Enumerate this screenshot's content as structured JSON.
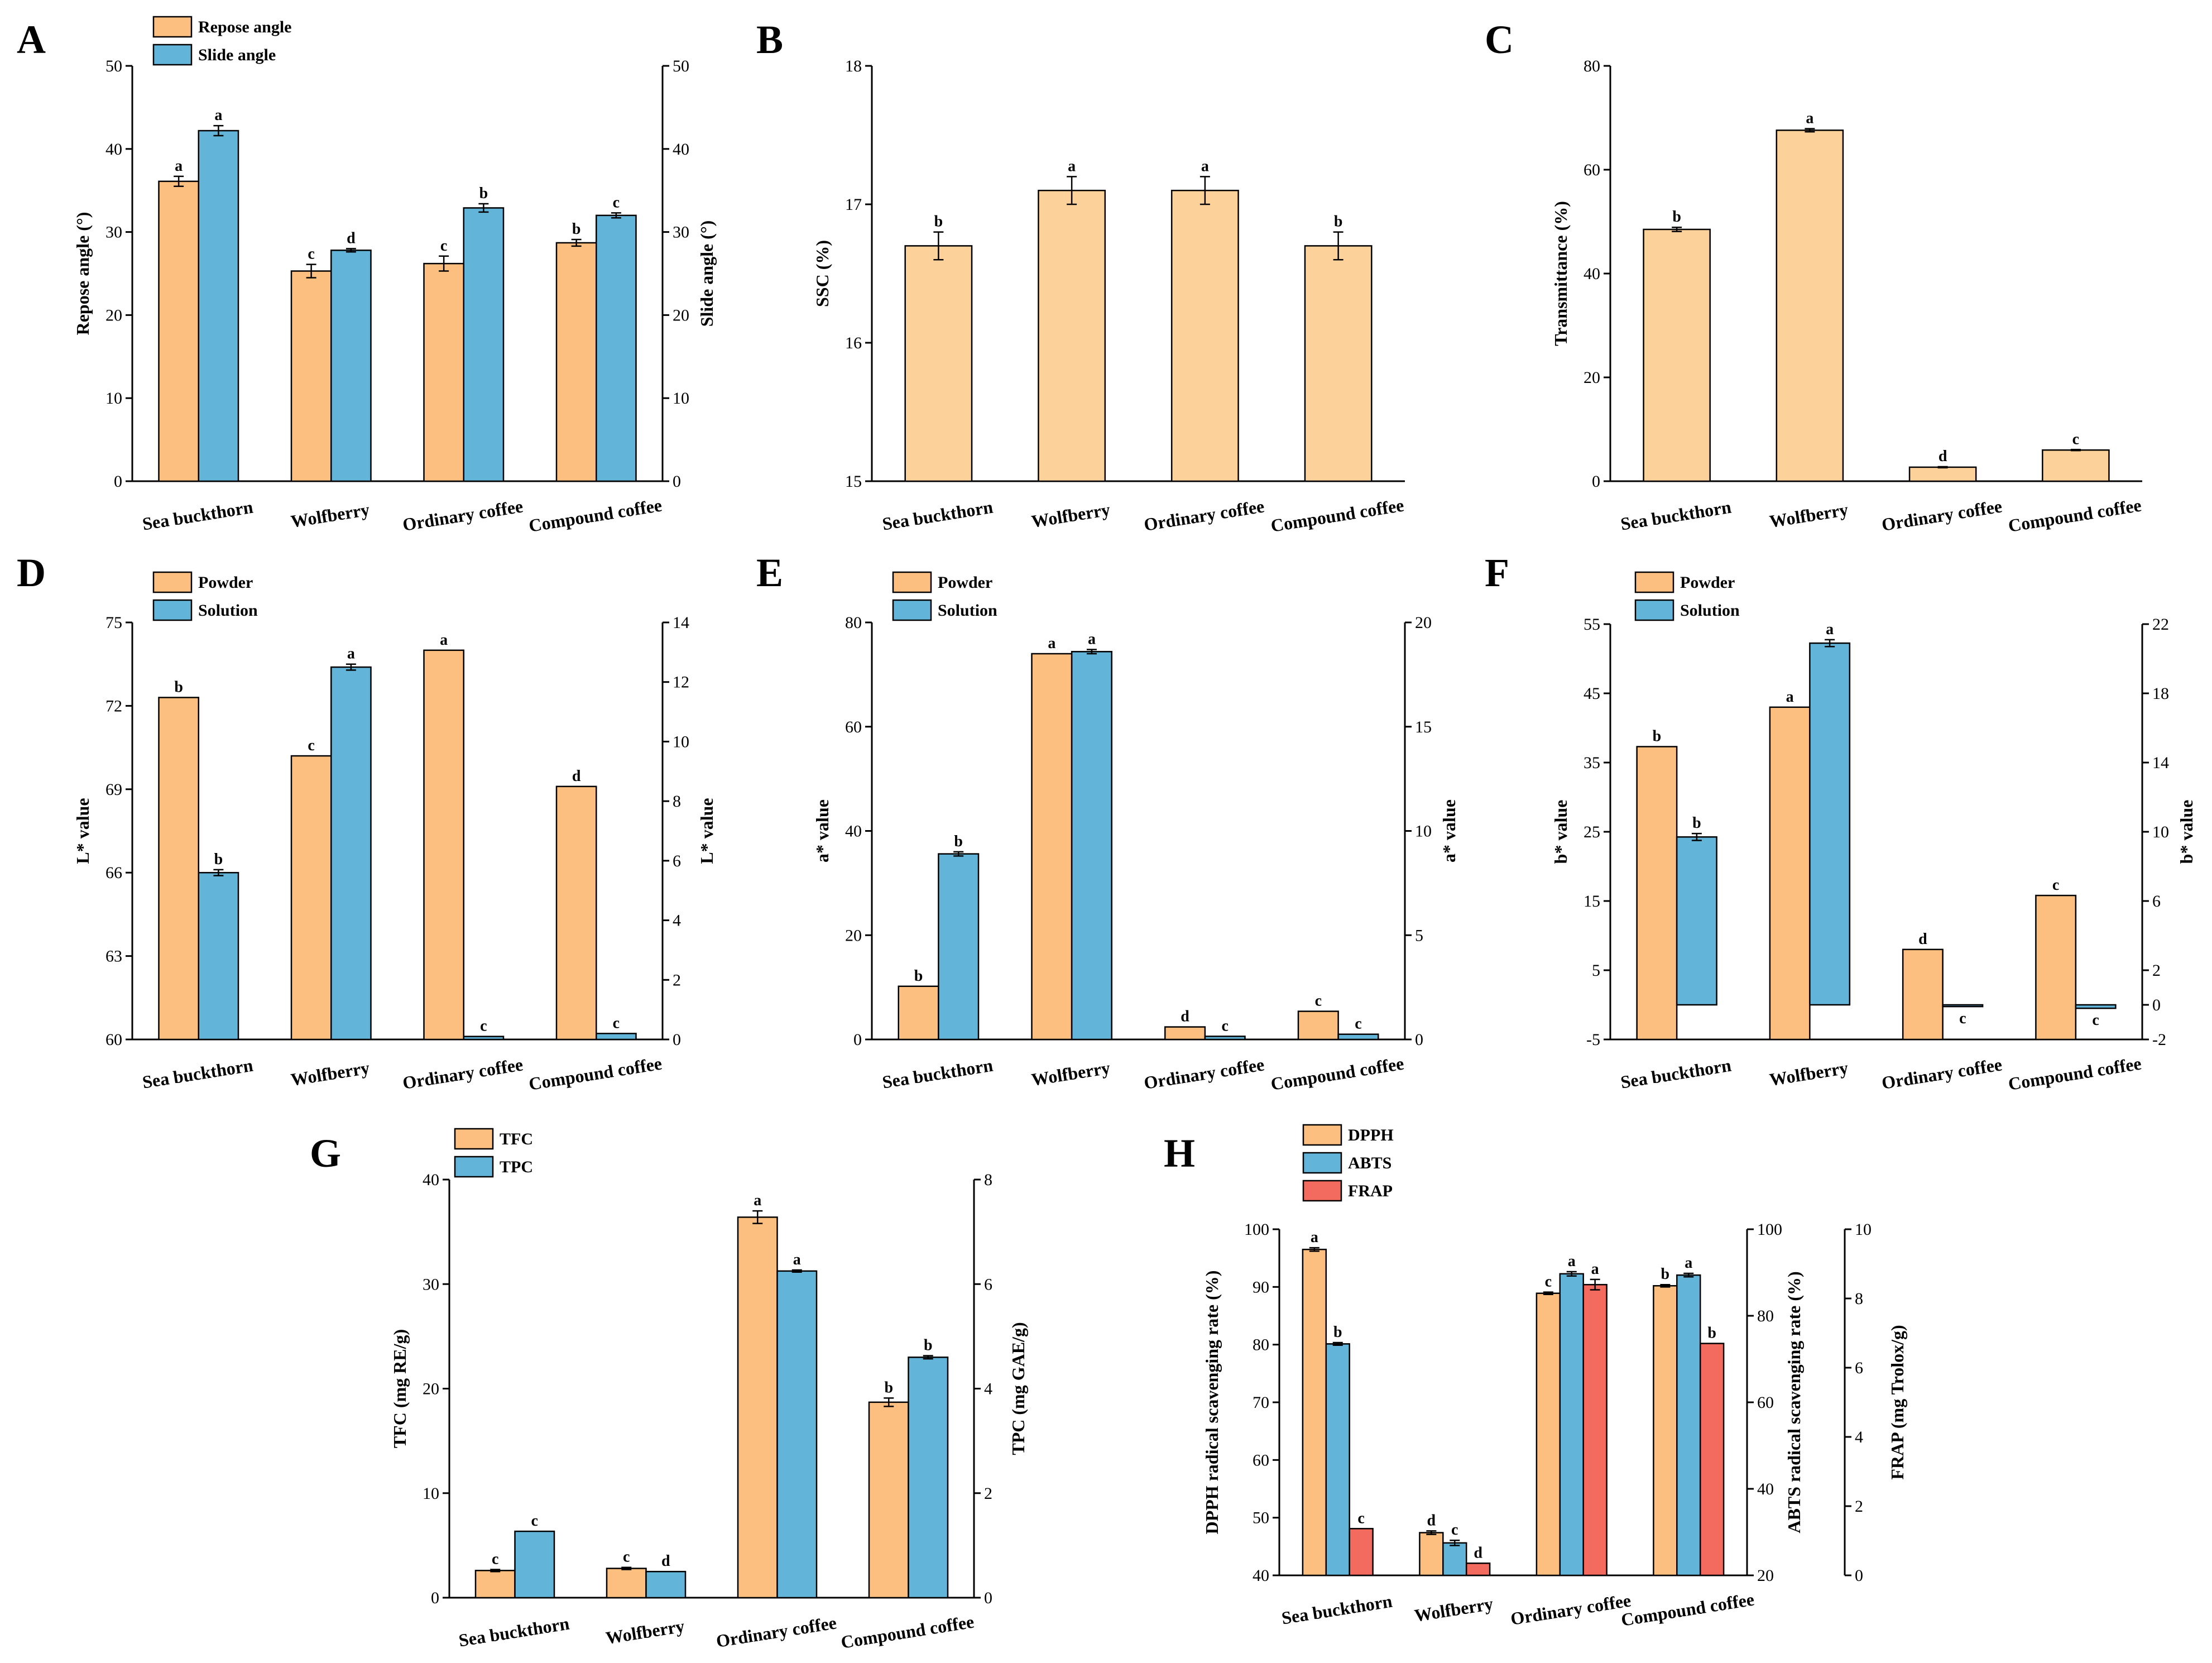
{
  "colors": {
    "orange": "#FDBF7F",
    "orange_light": "#FDD29A",
    "blue": "#62B4D8",
    "red": "#F26B5E"
  },
  "categories": [
    "Sea buckthorn",
    "Wolfberry",
    "Ordinary coffee",
    "Compound coffee"
  ],
  "chart_data": [
    {
      "panel": "A",
      "type": "bar",
      "categories": [
        "Sea buckthorn",
        "Wolfberry",
        "Ordinary coffee",
        "Compound coffee"
      ],
      "series": [
        {
          "name": "Repose angle",
          "color": "orange",
          "axis": "left",
          "values": [
            36.1,
            25.3,
            26.2,
            28.7
          ],
          "errors": [
            0.6,
            0.8,
            0.9,
            0.4
          ],
          "labels": [
            "a",
            "c",
            "c",
            "b"
          ]
        },
        {
          "name": "Slide angle",
          "color": "blue",
          "axis": "right",
          "values": [
            42.2,
            27.8,
            32.9,
            32.0
          ],
          "errors": [
            0.6,
            0.2,
            0.5,
            0.3
          ],
          "labels": [
            "a",
            "d",
            "b",
            "c"
          ]
        }
      ],
      "ylabel": "Repose angle (°)",
      "ylim": [
        0,
        50
      ],
      "yticks": [
        0,
        10,
        20,
        30,
        40,
        50
      ],
      "y2label": "Slide angle (°)",
      "y2lim": [
        0,
        50
      ],
      "y2ticks": [
        0,
        10,
        20,
        30,
        40,
        50
      ],
      "legend": "top-left"
    },
    {
      "panel": "B",
      "type": "bar",
      "categories": [
        "Sea buckthorn",
        "Wolfberry",
        "Ordinary coffee",
        "Compound coffee"
      ],
      "series": [
        {
          "name": "SSC",
          "color": "orange_light",
          "axis": "left",
          "values": [
            16.7,
            17.1,
            17.1,
            16.7
          ],
          "errors": [
            0.1,
            0.1,
            0.1,
            0.1
          ],
          "labels": [
            "b",
            "a",
            "a",
            "b"
          ]
        }
      ],
      "ylabel": "SSC (%)",
      "ylim": [
        15,
        18
      ],
      "yticks": [
        15,
        16,
        17,
        18
      ]
    },
    {
      "panel": "C",
      "type": "bar",
      "categories": [
        "Sea buckthorn",
        "Wolfberry",
        "Ordinary coffee",
        "Compound coffee"
      ],
      "series": [
        {
          "name": "Transmittance",
          "color": "orange_light",
          "axis": "left",
          "values": [
            48.5,
            67.6,
            2.7,
            6.0
          ],
          "errors": [
            0.4,
            0.3,
            0.1,
            0.1
          ],
          "labels": [
            "b",
            "a",
            "d",
            "c"
          ]
        }
      ],
      "ylabel": "Transmittance (%)",
      "ylim": [
        0,
        80
      ],
      "yticks": [
        0,
        20,
        40,
        60,
        80
      ]
    },
    {
      "panel": "D",
      "type": "bar",
      "categories": [
        "Sea buckthorn",
        "Wolfberry",
        "Ordinary coffee",
        "Compound coffee"
      ],
      "series": [
        {
          "name": "Powder",
          "color": "orange",
          "axis": "left",
          "values": [
            72.3,
            70.2,
            74.0,
            69.1
          ],
          "errors": [
            0,
            0,
            0,
            0
          ],
          "labels": [
            "b",
            "c",
            "a",
            "d"
          ]
        },
        {
          "name": "Solution",
          "color": "blue",
          "axis": "right",
          "values": [
            5.6,
            12.5,
            0.1,
            0.2
          ],
          "errors": [
            0.1,
            0.1,
            0,
            0
          ],
          "labels": [
            "b",
            "a",
            "c",
            "c"
          ]
        }
      ],
      "ylabel": "L* value",
      "ylim": [
        60,
        75
      ],
      "yticks": [
        60,
        63,
        66,
        69,
        72,
        75
      ],
      "y2label": "L* value",
      "y2lim": [
        0,
        14
      ],
      "y2ticks": [
        0,
        2,
        4,
        6,
        8,
        10,
        12,
        14
      ],
      "legend": "top-left"
    },
    {
      "panel": "E",
      "type": "bar",
      "categories": [
        "Sea buckthorn",
        "Wolfberry",
        "Ordinary coffee",
        "Compound coffee"
      ],
      "series": [
        {
          "name": "Powder",
          "color": "orange",
          "axis": "left",
          "values": [
            10.2,
            74.0,
            2.4,
            5.4
          ],
          "errors": [
            0,
            0,
            0,
            0
          ],
          "labels": [
            "b",
            "a",
            "d",
            "c"
          ]
        },
        {
          "name": "Solution",
          "color": "blue",
          "axis": "right",
          "values": [
            8.9,
            18.6,
            0.15,
            0.25
          ],
          "errors": [
            0.1,
            0.1,
            0,
            0
          ],
          "labels": [
            "b",
            "a",
            "c",
            "c"
          ]
        }
      ],
      "ylabel": "a* value",
      "ylim": [
        0,
        80
      ],
      "yticks": [
        0,
        20,
        40,
        60,
        80
      ],
      "y2label": "a* value",
      "y2lim": [
        0,
        20
      ],
      "y2ticks": [
        0,
        5,
        10,
        15,
        20
      ],
      "legend": "top-left"
    },
    {
      "panel": "F",
      "type": "bar",
      "categories": [
        "Sea buckthorn",
        "Wolfberry",
        "Ordinary coffee",
        "Compound coffee"
      ],
      "series": [
        {
          "name": "Powder",
          "color": "orange",
          "axis": "left",
          "values": [
            37.3,
            43.0,
            8.0,
            15.8
          ],
          "errors": [
            0,
            0,
            0,
            0
          ],
          "labels": [
            "b",
            "a",
            "d",
            "c"
          ]
        },
        {
          "name": "Solution",
          "color": "blue",
          "axis": "right",
          "values": [
            9.7,
            20.9,
            -0.1,
            -0.2
          ],
          "errors": [
            0.2,
            0.2,
            0,
            0
          ],
          "labels": [
            "b",
            "a",
            "c",
            "c"
          ]
        }
      ],
      "ylabel": "b* value",
      "ylim": [
        -5,
        55
      ],
      "yticks": [
        -5,
        5,
        15,
        25,
        35,
        45,
        55
      ],
      "y2label": "b* value",
      "y2lim": [
        -2,
        22
      ],
      "y2ticks": [
        -2,
        0,
        2,
        6,
        10,
        14,
        18,
        22
      ],
      "legend": "top-left"
    },
    {
      "panel": "G",
      "type": "bar",
      "categories": [
        "Sea buckthorn",
        "Wolfberry",
        "Ordinary coffee",
        "Compound coffee"
      ],
      "series": [
        {
          "name": "TFC",
          "color": "orange",
          "axis": "left",
          "values": [
            2.6,
            2.8,
            36.4,
            18.7
          ],
          "errors": [
            0.1,
            0.1,
            0.6,
            0.4
          ],
          "labels": [
            "c",
            "c",
            "a",
            "b"
          ]
        },
        {
          "name": "TPC",
          "color": "blue",
          "axis": "right",
          "values": [
            1.27,
            0.5,
            6.25,
            4.6
          ],
          "errors": [
            0,
            0,
            0.02,
            0.03
          ],
          "labels": [
            "c",
            "d",
            "a",
            "b"
          ]
        }
      ],
      "ylabel": "TFC (mg RE/g)",
      "ylim": [
        0,
        40
      ],
      "yticks": [
        0,
        10,
        20,
        30,
        40
      ],
      "y2label": "TPC (mg GAE/g)",
      "y2lim": [
        0,
        8
      ],
      "y2ticks": [
        0,
        2,
        4,
        6,
        8
      ],
      "legend": "top-left"
    },
    {
      "panel": "H",
      "type": "bar",
      "categories": [
        "Sea buckthorn",
        "Wolfberry",
        "Ordinary coffee",
        "Compound coffee"
      ],
      "series": [
        {
          "name": "DPPH",
          "color": "orange",
          "axis": "left",
          "values": [
            96.5,
            47.4,
            88.9,
            90.2
          ],
          "errors": [
            0.3,
            0.3,
            0.2,
            0.2
          ],
          "labels": [
            "a",
            "d",
            "c",
            "b"
          ]
        },
        {
          "name": "ABTS",
          "color": "blue",
          "axis": "right",
          "values": [
            73.5,
            27.5,
            89.7,
            89.4
          ],
          "errors": [
            0.3,
            0.6,
            0.5,
            0.4
          ],
          "labels": [
            "b",
            "c",
            "a",
            "a"
          ]
        },
        {
          "name": "FRAP",
          "color": "red",
          "axis": "third",
          "values": [
            1.35,
            0.35,
            8.4,
            6.7
          ],
          "errors": [
            0,
            0,
            0.15,
            0
          ],
          "labels": [
            "c",
            "d",
            "a",
            "b"
          ]
        }
      ],
      "ylabel": "DPPH radical scavenging rate (%)",
      "ylim": [
        40,
        100
      ],
      "yticks": [
        40,
        50,
        60,
        70,
        80,
        90,
        100
      ],
      "y2label": "ABTS radical scavenging rate (%)",
      "y2lim": [
        20,
        100
      ],
      "y2ticks": [
        20,
        40,
        60,
        80,
        100
      ],
      "y3label": "FRAP (mg Trolox/g)",
      "y3lim": [
        0,
        10
      ],
      "y3ticks": [
        0,
        2,
        4,
        6,
        8,
        10
      ],
      "legend": "top-left"
    }
  ]
}
